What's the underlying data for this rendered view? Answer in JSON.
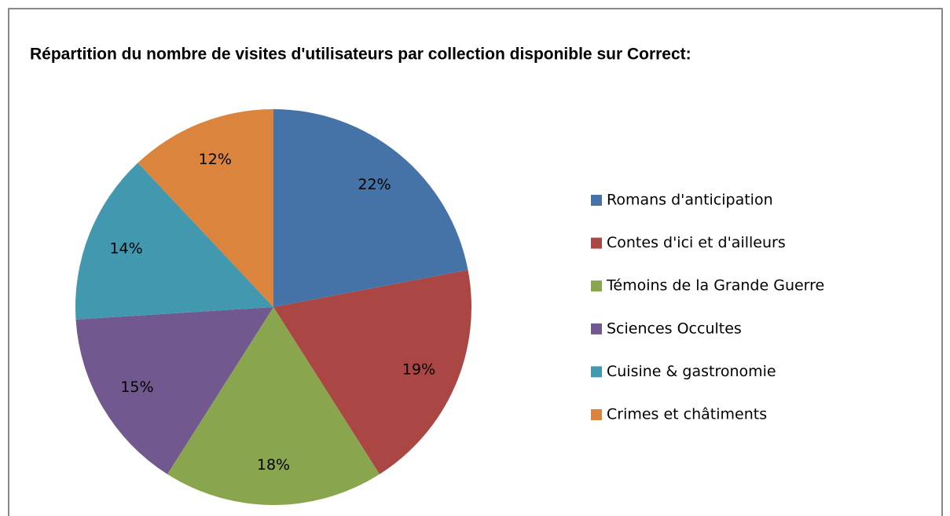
{
  "chart_data": {
    "type": "pie",
    "title": "Répartition du nombre de visites d'utilisateurs par collection disponible sur Correct:",
    "categories": [
      "Romans d'anticipation",
      "Contes d'ici et d'ailleurs",
      "Témoins de la Grande Guerre",
      "Sciences Occultes",
      "Cuisine & gastronomie",
      "Crimes et châtiments"
    ],
    "values": [
      22,
      19,
      18,
      15,
      14,
      12
    ],
    "value_labels": [
      "22%",
      "19%",
      "18%",
      "15%",
      "14%",
      "12%"
    ],
    "colors": [
      "#4572a7",
      "#aa4643",
      "#89a54e",
      "#71588f",
      "#4198af",
      "#db843d"
    ],
    "legend": "right"
  }
}
